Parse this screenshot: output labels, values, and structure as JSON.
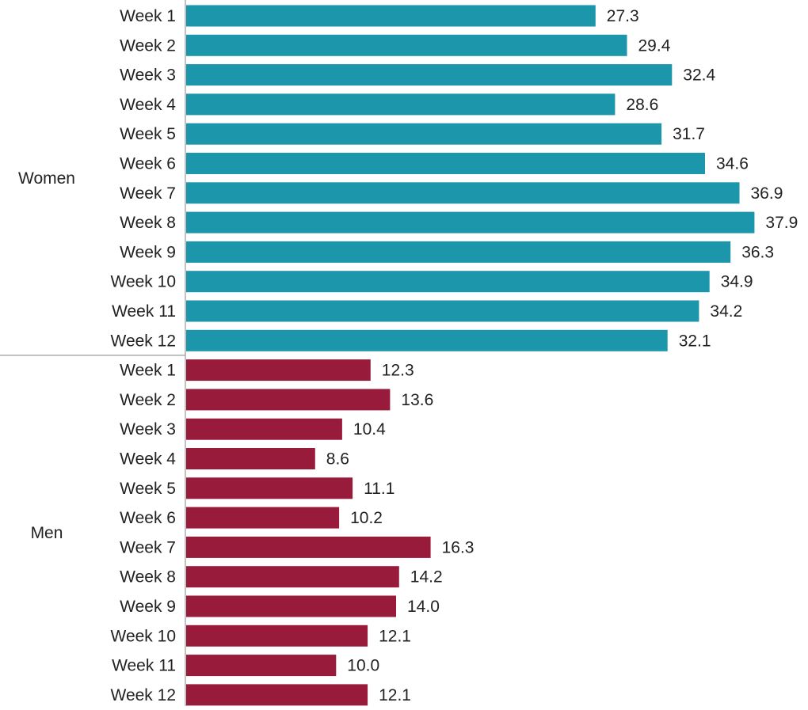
{
  "chart_data": {
    "type": "bar",
    "orientation": "horizontal",
    "grid": false,
    "legend": "none",
    "groups": [
      {
        "name": "Women",
        "color": "#1b96aa",
        "categories": [
          "Week 1",
          "Week 2",
          "Week 3",
          "Week 4",
          "Week 5",
          "Week 6",
          "Week 7",
          "Week 8",
          "Week 9",
          "Week 10",
          "Week 11",
          "Week 12"
        ],
        "values": [
          27.3,
          29.4,
          32.4,
          28.6,
          31.7,
          34.6,
          36.9,
          37.9,
          36.3,
          34.9,
          34.2,
          32.1
        ],
        "labels": [
          "27.3",
          "29.4",
          "32.4",
          "28.6",
          "31.7",
          "34.6",
          "36.9",
          "37.9",
          "36.3",
          "34.9",
          "34.2",
          "32.1"
        ]
      },
      {
        "name": "Men",
        "color": "#991b3b",
        "categories": [
          "Week 1",
          "Week 2",
          "Week 3",
          "Week 4",
          "Week 5",
          "Week 6",
          "Week 7",
          "Week 8",
          "Week 9",
          "Week 10",
          "Week 11",
          "Week 12"
        ],
        "values": [
          12.3,
          13.6,
          10.4,
          8.6,
          11.1,
          10.2,
          16.3,
          14.2,
          14.0,
          12.1,
          10.0,
          12.1
        ],
        "labels": [
          "12.3",
          "13.6",
          "10.4",
          "8.6",
          "11.1",
          "10.2",
          "16.3",
          "14.2",
          "14.0",
          "12.1",
          "10.0",
          "12.1"
        ]
      }
    ],
    "xlim": [
      0,
      37.9
    ]
  }
}
